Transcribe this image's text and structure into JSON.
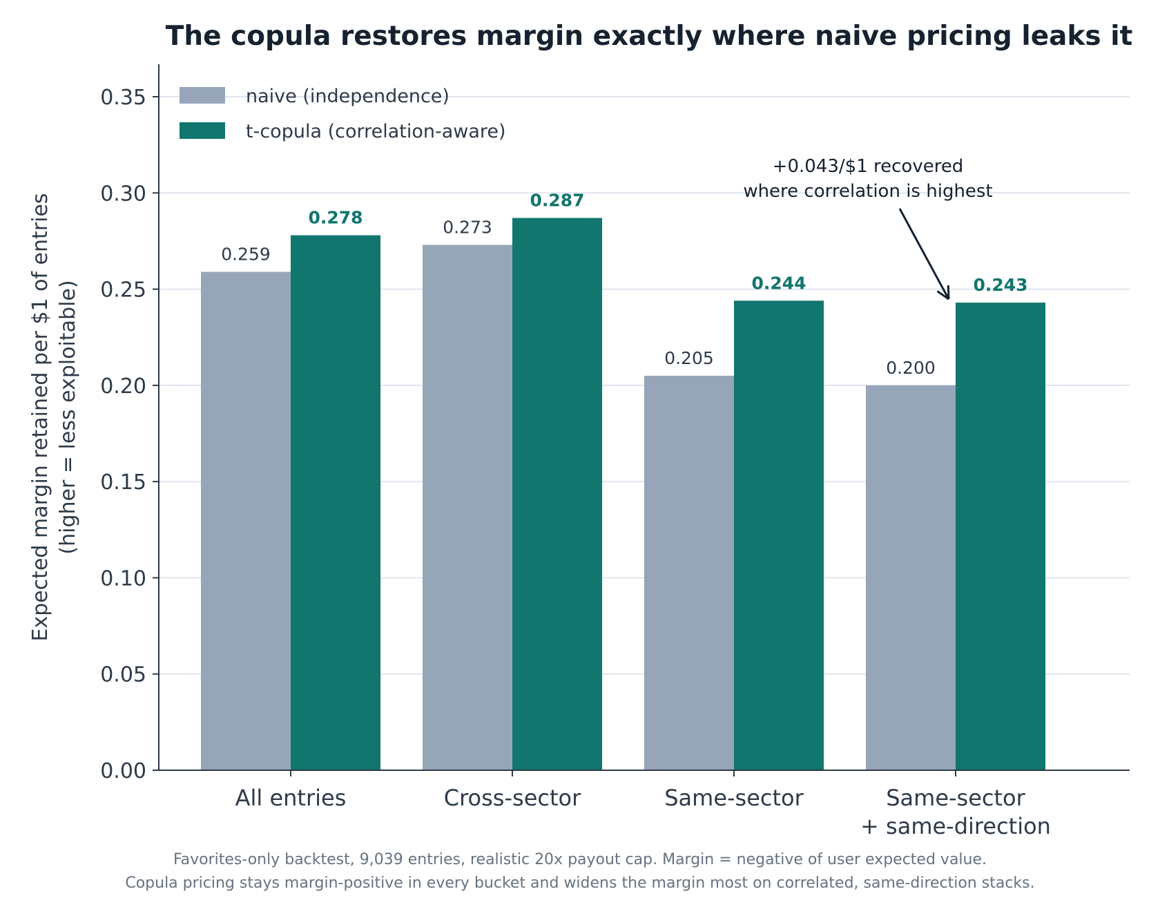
{
  "chart_data": {
    "type": "bar",
    "title": "The copula restores margin exactly where naive pricing leaks it",
    "ylabel_lines": [
      "Expected margin retained per $1 of entries",
      "(higher = less exploitable)"
    ],
    "xlabel": "",
    "ylim": [
      0,
      0.367
    ],
    "yticks": [
      0.0,
      0.05,
      0.1,
      0.15,
      0.2,
      0.25,
      0.3,
      0.35
    ],
    "ytick_labels": [
      "0.00",
      "0.05",
      "0.10",
      "0.15",
      "0.20",
      "0.25",
      "0.30",
      "0.35"
    ],
    "grid": true,
    "legend_position": "top-left",
    "categories": [
      [
        "All entries"
      ],
      [
        "Cross-sector"
      ],
      [
        "Same-sector"
      ],
      [
        "Same-sector",
        "+ same-direction"
      ]
    ],
    "series": [
      {
        "name": "naive (independence)",
        "color": "#97a5b9",
        "label_color": "#2e3a48",
        "label_bold": false,
        "values": [
          0.259,
          0.273,
          0.205,
          0.2
        ],
        "labels": [
          "0.259",
          "0.273",
          "0.205",
          "0.200"
        ]
      },
      {
        "name": "t-copula (correlation-aware)",
        "color": "#11766d",
        "label_color": "#11766d",
        "label_bold": true,
        "values": [
          0.278,
          0.287,
          0.244,
          0.243
        ],
        "labels": [
          "0.278",
          "0.287",
          "0.244",
          "0.243"
        ]
      }
    ],
    "annotation": {
      "lines": [
        "+0.043/$1 recovered",
        "where correlation is highest"
      ],
      "category_index": 3,
      "series_index": 1
    }
  },
  "caption": {
    "line1": "Favorites-only backtest, 9,039 entries, realistic 20x payout cap. Margin = negative of user expected value.",
    "line2": "Copula pricing stays margin-positive in every bucket and widens the margin most on correlated, same-direction stacks."
  },
  "colors": {
    "axis": "#2e3a48",
    "grid": "#dfe6ee",
    "title": "#16222f",
    "annotation": "#16222f"
  }
}
